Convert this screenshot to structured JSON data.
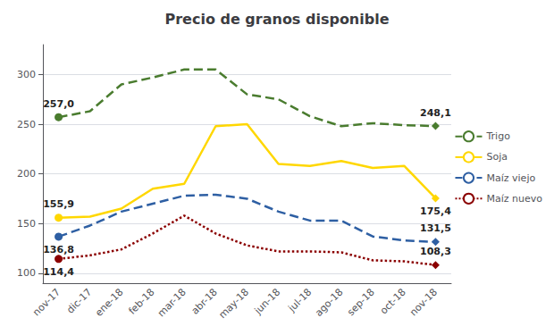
{
  "chart_data": {
    "type": "line",
    "title": "Precio de granos disponible",
    "categories": [
      "nov-17",
      "dic-17",
      "ene-18",
      "feb-18",
      "mar-18",
      "abr-18",
      "may-18",
      "jun-18",
      "jul-18",
      "ago-18",
      "sep-18",
      "oct-18",
      "nov-18"
    ],
    "series": [
      {
        "name": "Trigo",
        "color": "#4a7c2f",
        "line_style": "dashed",
        "values": [
          257.0,
          263.0,
          290.0,
          297.0,
          305.0,
          305.0,
          280.0,
          275.0,
          258.0,
          248.0,
          251.0,
          249.0,
          248.1
        ],
        "value_labels": [
          "257,0",
          null,
          null,
          null,
          null,
          null,
          null,
          null,
          null,
          null,
          null,
          null,
          "248,1"
        ]
      },
      {
        "name": "Soja",
        "color": "#FFD700",
        "line_style": "solid",
        "values": [
          155.9,
          157.0,
          165.0,
          185.0,
          190.0,
          248.0,
          250.0,
          210.0,
          208.0,
          213.0,
          206.0,
          208.0,
          175.4
        ],
        "value_labels": [
          "155,9",
          null,
          null,
          null,
          null,
          null,
          null,
          null,
          null,
          null,
          null,
          null,
          "175,4"
        ]
      },
      {
        "name": "Maíz viejo",
        "color": "#2e5fa3",
        "line_style": "dashed",
        "values": [
          136.8,
          148.0,
          162.0,
          170.0,
          178.0,
          179.0,
          175.0,
          162.0,
          153.0,
          153.0,
          137.0,
          133.0,
          131.5
        ],
        "value_labels": [
          "136,8",
          null,
          null,
          null,
          null,
          null,
          null,
          null,
          null,
          null,
          null,
          null,
          "131,5"
        ]
      },
      {
        "name": "Maíz nuevo",
        "color": "#8b0000",
        "line_style": "dotted",
        "values": [
          114.4,
          118.0,
          124.0,
          140.0,
          158.0,
          140.0,
          128.0,
          122.0,
          122.0,
          121.0,
          113.0,
          112.0,
          108.3
        ],
        "value_labels": [
          "114,4",
          null,
          null,
          null,
          null,
          null,
          null,
          null,
          null,
          null,
          null,
          null,
          "108,3"
        ]
      }
    ],
    "ylim": [
      90,
      330
    ],
    "yticks": [
      100,
      150,
      200,
      250,
      300
    ],
    "grid": true,
    "legend": "right"
  }
}
